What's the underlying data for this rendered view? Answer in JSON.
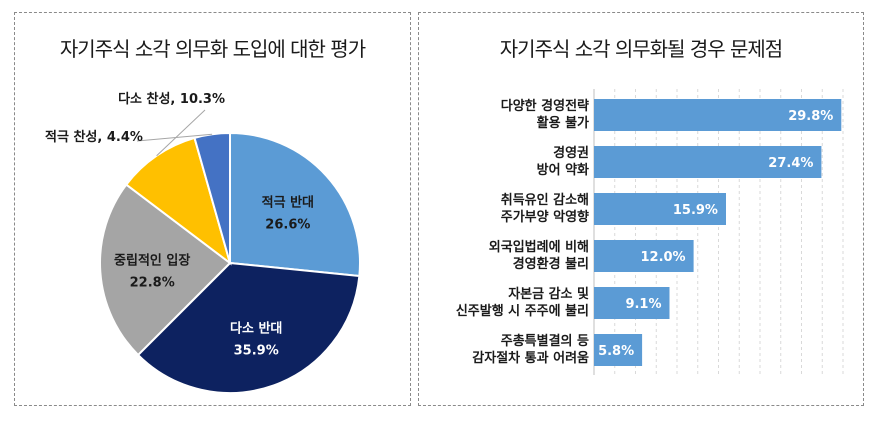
{
  "chart_data": [
    {
      "type": "pie",
      "title": "자기주식 소각 의무화 도입에 대한 평가",
      "slices": [
        {
          "label": "적극 반대",
          "value": 26.6,
          "value_label": "26.6%",
          "color": "#5b9bd5",
          "text_color": "#1a1a1a",
          "label_inside": true
        },
        {
          "label": "다소 반대",
          "value": 35.9,
          "value_label": "35.9%",
          "color": "#0d2260",
          "text_color": "#ffffff",
          "label_inside": true
        },
        {
          "label": "중립적인 입장",
          "value": 22.8,
          "value_label": "22.8%",
          "color": "#a5a5a5",
          "text_color": "#1a1a1a",
          "label_inside": true
        },
        {
          "label": "다소 찬성",
          "value": 10.3,
          "value_label": "10.3%",
          "color": "#ffc000",
          "text_color": "#1a1a1a",
          "label_inside": false
        },
        {
          "label": "적극 찬성",
          "value": 4.4,
          "value_label": "4.4%",
          "color": "#4472c4",
          "text_color": "#1a1a1a",
          "label_inside": false
        }
      ]
    },
    {
      "type": "bar",
      "orientation": "horizontal",
      "title": "자기주식 소각 의무화될 경우 문제점",
      "categories": [
        [
          "다양한 경영전략",
          "활용 불가"
        ],
        [
          "경영권",
          "방어 약화"
        ],
        [
          "취득유인 감소해",
          "주가부양 악영향"
        ],
        [
          "외국입법례에 비해",
          "경영환경 불리"
        ],
        [
          "자본금 감소 및",
          "신주발행 시 주주에 불리"
        ],
        [
          "주총특별결의 등",
          "감자절차 통과 어려움"
        ]
      ],
      "values": [
        29.8,
        27.4,
        15.9,
        12.0,
        9.1,
        5.8
      ],
      "value_labels": [
        "29.8%",
        "27.4%",
        "15.9%",
        "12.0%",
        "9.1%",
        "5.8%"
      ],
      "bar_color": "#5b9bd5",
      "grid": "vertical-dashed"
    }
  ]
}
